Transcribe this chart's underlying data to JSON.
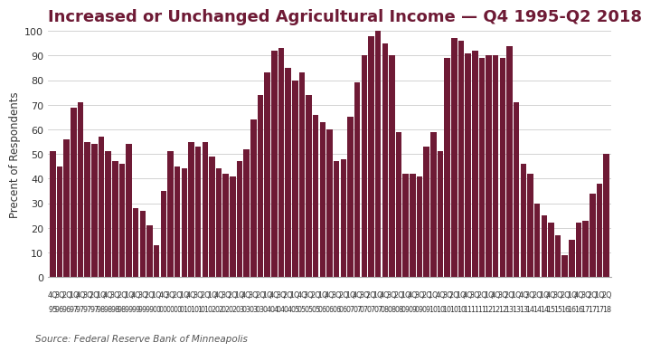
{
  "title": "Increased or Unchanged Agricultural Income — Q4 1995-Q2 2018",
  "ylabel": "Precent of Respondents",
  "source": "Source: Federal Reserve Bank of Minneapolis",
  "bar_color": "#6e1a35",
  "background_color": "#ffffff",
  "ylim": [
    0,
    100
  ],
  "yticks": [
    0,
    10,
    20,
    30,
    40,
    50,
    60,
    70,
    80,
    90,
    100
  ],
  "values": [
    51,
    45,
    56,
    69,
    71,
    55,
    54,
    57,
    51,
    47,
    46,
    54,
    28,
    27,
    21,
    13,
    35,
    51,
    45,
    44,
    55,
    53,
    55,
    49,
    44,
    42,
    41,
    47,
    52,
    64,
    74,
    83,
    92,
    93,
    85,
    80,
    83,
    74,
    66,
    63,
    60,
    47,
    48,
    65,
    79,
    90,
    98,
    100,
    95,
    90,
    59,
    42,
    42,
    41,
    53,
    59,
    51,
    89,
    97,
    96,
    91,
    92,
    89,
    90,
    90,
    89,
    94,
    71,
    46,
    42,
    30,
    25,
    22,
    17,
    9,
    15,
    22,
    23,
    34,
    38,
    50
  ],
  "tick_labels_q": [
    "4Q",
    "3Q",
    "2Q",
    "1Q",
    "4Q",
    "3Q",
    "2Q",
    "1Q",
    "4Q",
    "3Q",
    "2Q",
    "1Q",
    "4Q",
    "3Q",
    "2Q",
    "1Q",
    "4Q",
    "3Q",
    "2Q",
    "1Q",
    "4Q",
    "3Q",
    "2Q",
    "1Q",
    "4Q",
    "3Q",
    "2Q",
    "1Q",
    "4Q",
    "3Q",
    "2Q",
    "1Q",
    "4Q",
    "3Q",
    "2Q",
    "1Q",
    "4Q",
    "3Q",
    "2Q",
    "1Q",
    "4Q",
    "3Q",
    "2Q",
    "1Q",
    "4Q",
    "3Q",
    "2Q",
    "1Q",
    "4Q",
    "3Q",
    "2Q",
    "1Q",
    "4Q",
    "3Q",
    "2Q",
    "1Q",
    "4Q",
    "3Q",
    "2Q",
    "1Q",
    "4Q",
    "3Q",
    "2Q",
    "1Q",
    "4Q",
    "3Q",
    "2Q",
    "1Q",
    "4Q",
    "3Q",
    "2Q",
    "1Q",
    "4Q",
    "3Q",
    "2Q",
    "1Q",
    "4Q",
    "3Q",
    "2Q",
    "1Q",
    "2Q"
  ],
  "tick_labels_yr": [
    "95",
    "96",
    "96",
    "97",
    "97",
    "97",
    "97",
    "98",
    "98",
    "98",
    "98",
    "99",
    "99",
    "99",
    "99",
    "00",
    "00",
    "00",
    "00",
    "01",
    "01",
    "01",
    "01",
    "02",
    "02",
    "02",
    "02",
    "03",
    "03",
    "03",
    "03",
    "04",
    "04",
    "04",
    "04",
    "05",
    "05",
    "05",
    "05",
    "06",
    "06",
    "06",
    "06",
    "07",
    "07",
    "07",
    "07",
    "07",
    "08",
    "08",
    "08",
    "09",
    "09",
    "09",
    "09",
    "10",
    "10",
    "10",
    "10",
    "10",
    "11",
    "11",
    "11",
    "12",
    "12",
    "12",
    "13",
    "13",
    "13",
    "14",
    "14",
    "14",
    "15",
    "15",
    "16",
    "16",
    "16",
    "17",
    "17",
    "17",
    "18"
  ],
  "title_fontsize": 13,
  "ylabel_fontsize": 8.5,
  "ytick_fontsize": 8,
  "xtick_fontsize": 5.8
}
